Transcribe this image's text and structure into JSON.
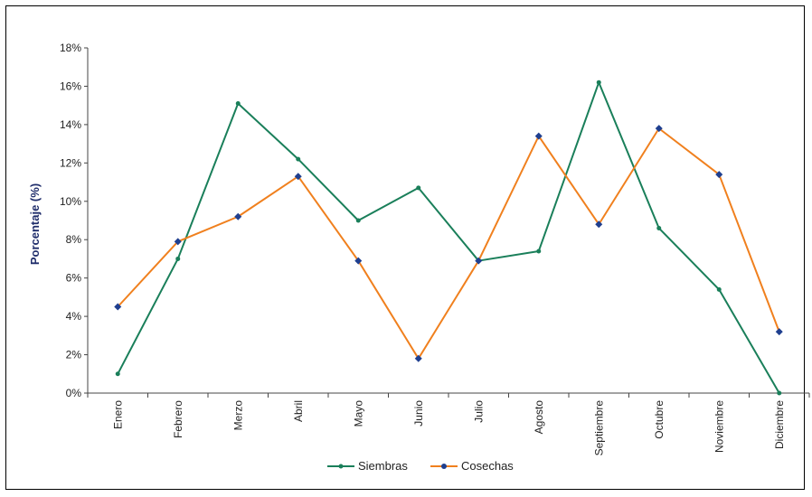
{
  "chart_data": {
    "type": "line",
    "categories": [
      "Enero",
      "Febrero",
      "Merzo",
      "Abril",
      "Mayo",
      "Junio",
      "Julio",
      "Agosto",
      "Septiembre",
      "Octubre",
      "Noviembre",
      "Diciembre"
    ],
    "ylabel": "Porcentaje (%)",
    "ylim": [
      0,
      18
    ],
    "yticks": [
      "0%",
      "2%",
      "4%",
      "6%",
      "8%",
      "10%",
      "12%",
      "14%",
      "16%",
      "18%"
    ],
    "grid": false,
    "legend_position": "bottom",
    "series": [
      {
        "name": "Siembras",
        "color": "#1a7f5a",
        "marker_color": "#1a7f5a",
        "values": [
          1.0,
          7.0,
          15.1,
          12.2,
          9.0,
          10.7,
          6.9,
          7.4,
          16.2,
          8.6,
          5.4,
          0.0
        ]
      },
      {
        "name": "Cosechas",
        "color": "#f0801e",
        "marker_color": "#1f3f8f",
        "values": [
          4.5,
          7.9,
          9.2,
          11.3,
          6.9,
          1.8,
          6.9,
          13.4,
          8.8,
          13.8,
          11.4,
          3.2
        ]
      }
    ]
  }
}
